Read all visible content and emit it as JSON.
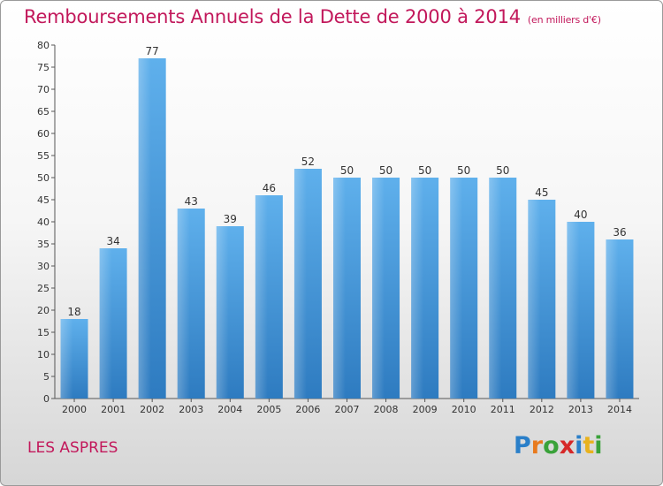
{
  "chart_data": {
    "type": "bar",
    "title": "Remboursements Annuels de la Dette de 2000 à 2014",
    "subtitle": "(en milliers d'€)",
    "categories": [
      "2000",
      "2001",
      "2002",
      "2003",
      "2004",
      "2005",
      "2006",
      "2007",
      "2008",
      "2009",
      "2010",
      "2011",
      "2012",
      "2013",
      "2014"
    ],
    "values": [
      18,
      34,
      77,
      43,
      39,
      46,
      52,
      50,
      50,
      50,
      50,
      50,
      45,
      40,
      36
    ],
    "ylim": [
      0,
      80
    ],
    "yticks": [
      0,
      5,
      10,
      15,
      20,
      25,
      30,
      35,
      40,
      45,
      50,
      55,
      60,
      65,
      70,
      75,
      80
    ],
    "xlabel": "",
    "ylabel": "",
    "grid": false,
    "bar_color": "#4f9fdc"
  },
  "location_name": "LES ASPRES",
  "brand": {
    "letters": [
      "P",
      "r",
      "o",
      "x",
      "i",
      "t",
      "i"
    ],
    "colors": [
      "#2a7fc9",
      "#e87a1e",
      "#3aa23a",
      "#d62828",
      "#2a7fc9",
      "#e8b21e",
      "#3aa23a"
    ]
  }
}
